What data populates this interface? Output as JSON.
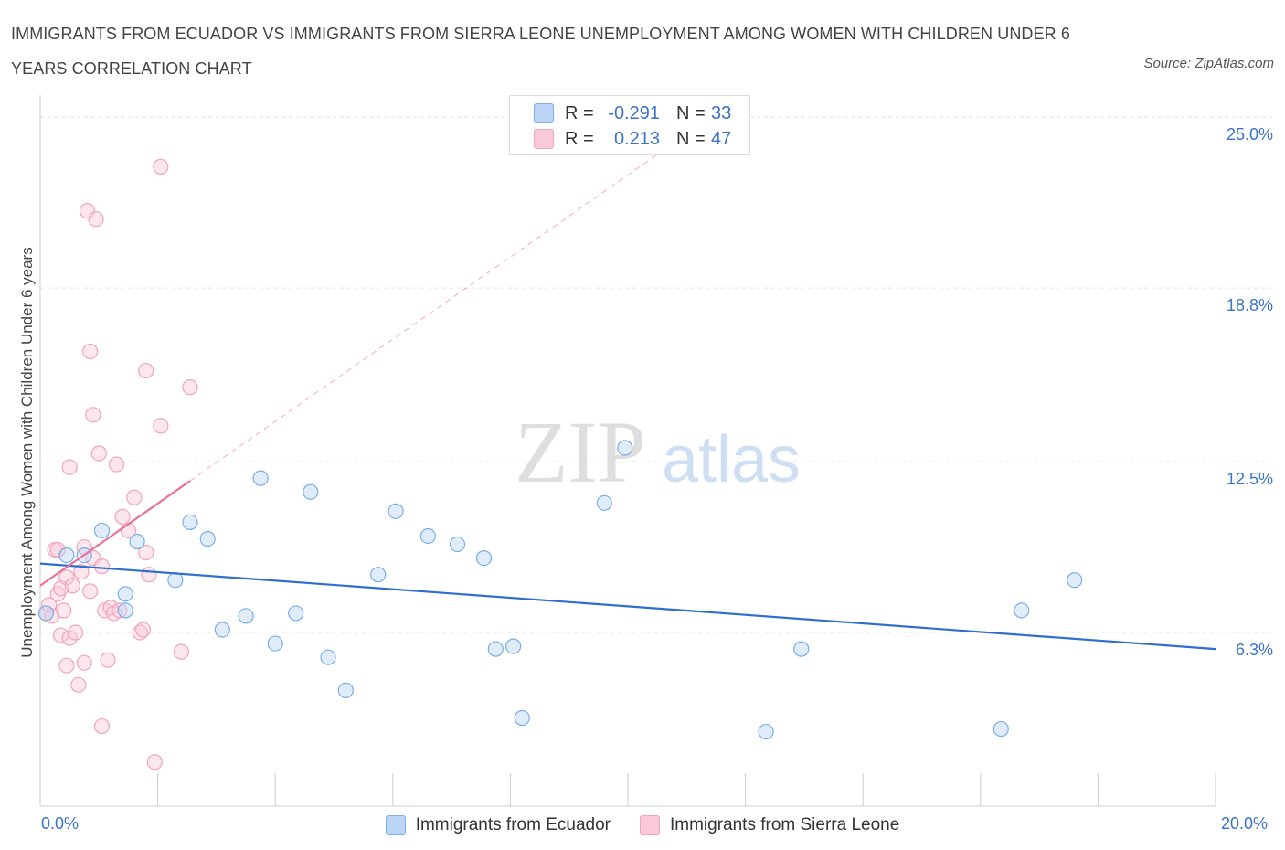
{
  "title": "IMMIGRANTS FROM ECUADOR VS IMMIGRANTS FROM SIERRA LEONE UNEMPLOYMENT AMONG WOMEN WITH CHILDREN UNDER 6 YEARS CORRELATION CHART",
  "source": "Source: ZipAtlas.com",
  "watermark": {
    "zip": "ZIP",
    "atlas": "atlas"
  },
  "legend_top": {
    "rows": [
      {
        "r_label": "R =",
        "r_value": "-0.291",
        "n_label": "N =",
        "n_value": "33"
      },
      {
        "r_label": "R =",
        "r_value": "0.213",
        "n_label": "N =",
        "n_value": "47"
      }
    ]
  },
  "chart_data": {
    "type": "scatter",
    "title": "IMMIGRANTS FROM ECUADOR VS IMMIGRANTS FROM SIERRA LEONE UNEMPLOYMENT AMONG WOMEN WITH CHILDREN UNDER 6 YEARS CORRELATION CHART",
    "xlabel": "",
    "ylabel": "Unemployment Among Women with Children Under 6 years",
    "xlim": [
      0,
      20
    ],
    "ylim": [
      0,
      25.8
    ],
    "x_tick_labels": [
      "0.0%",
      "20.0%"
    ],
    "y_ticks": [
      6.3,
      12.5,
      18.8,
      25.0
    ],
    "y_tick_labels": [
      "6.3%",
      "12.5%",
      "18.8%",
      "25.0%"
    ],
    "grid": true,
    "legend_position": "bottom",
    "colors": {
      "ecuador": "#7aaee8",
      "sierra_leone": "#f2a3bd",
      "ecuador_line": "#2f6fcc",
      "sierra_leone_line": "#e8739a"
    },
    "series": [
      {
        "name": "Immigrants from Ecuador",
        "r": -0.291,
        "n": 33,
        "trend": {
          "x": [
            0,
            20
          ],
          "y": [
            8.8,
            5.7
          ]
        },
        "points": [
          [
            0.1,
            7.0
          ],
          [
            0.45,
            9.1
          ],
          [
            0.75,
            9.1
          ],
          [
            1.05,
            10.0
          ],
          [
            1.45,
            7.7
          ],
          [
            1.65,
            9.6
          ],
          [
            1.45,
            7.1
          ],
          [
            2.3,
            8.2
          ],
          [
            2.55,
            10.3
          ],
          [
            2.85,
            9.7
          ],
          [
            3.1,
            6.4
          ],
          [
            3.5,
            6.9
          ],
          [
            3.75,
            11.9
          ],
          [
            4.0,
            5.9
          ],
          [
            4.35,
            7.0
          ],
          [
            4.6,
            11.4
          ],
          [
            4.9,
            5.4
          ],
          [
            5.2,
            4.2
          ],
          [
            5.75,
            8.4
          ],
          [
            6.05,
            10.7
          ],
          [
            6.6,
            9.8
          ],
          [
            7.1,
            9.5
          ],
          [
            7.55,
            9.0
          ],
          [
            7.75,
            5.7
          ],
          [
            8.05,
            5.8
          ],
          [
            8.2,
            3.2
          ],
          [
            9.6,
            11.0
          ],
          [
            9.95,
            13.0
          ],
          [
            12.35,
            2.7
          ],
          [
            12.95,
            5.7
          ],
          [
            16.35,
            2.8
          ],
          [
            16.7,
            7.1
          ],
          [
            17.6,
            8.2
          ]
        ]
      },
      {
        "name": "Immigrants from Sierra Leone",
        "r": 0.213,
        "n": 47,
        "trend": {
          "x": [
            0,
            2.55
          ],
          "y": [
            8.0,
            11.8
          ]
        },
        "points": [
          [
            0.1,
            7.0
          ],
          [
            0.15,
            7.3
          ],
          [
            0.2,
            6.9
          ],
          [
            0.25,
            9.3
          ],
          [
            0.3,
            9.3
          ],
          [
            0.3,
            7.7
          ],
          [
            0.35,
            6.2
          ],
          [
            0.35,
            7.9
          ],
          [
            0.4,
            7.1
          ],
          [
            0.45,
            8.3
          ],
          [
            0.45,
            5.1
          ],
          [
            0.5,
            6.1
          ],
          [
            0.5,
            12.3
          ],
          [
            0.55,
            8.0
          ],
          [
            0.6,
            6.3
          ],
          [
            0.65,
            4.4
          ],
          [
            0.7,
            8.5
          ],
          [
            0.75,
            9.4
          ],
          [
            0.75,
            5.2
          ],
          [
            0.8,
            21.6
          ],
          [
            0.85,
            16.5
          ],
          [
            0.85,
            7.8
          ],
          [
            0.9,
            14.2
          ],
          [
            0.9,
            9.0
          ],
          [
            0.95,
            21.3
          ],
          [
            1.0,
            12.8
          ],
          [
            1.05,
            8.7
          ],
          [
            1.05,
            2.9
          ],
          [
            1.1,
            7.1
          ],
          [
            1.15,
            5.3
          ],
          [
            1.2,
            7.2
          ],
          [
            1.25,
            7.0
          ],
          [
            1.3,
            12.4
          ],
          [
            1.35,
            7.1
          ],
          [
            1.4,
            10.5
          ],
          [
            1.5,
            10.0
          ],
          [
            1.6,
            11.2
          ],
          [
            1.7,
            6.3
          ],
          [
            1.75,
            6.4
          ],
          [
            1.8,
            15.8
          ],
          [
            1.8,
            9.2
          ],
          [
            1.85,
            8.4
          ],
          [
            2.05,
            13.8
          ],
          [
            1.95,
            1.6
          ],
          [
            2.05,
            23.2
          ],
          [
            2.4,
            5.6
          ],
          [
            2.55,
            15.2
          ]
        ]
      }
    ]
  },
  "legend_bottom": [
    {
      "label": "Immigrants from Ecuador"
    },
    {
      "label": "Immigrants from Sierra Leone"
    }
  ]
}
